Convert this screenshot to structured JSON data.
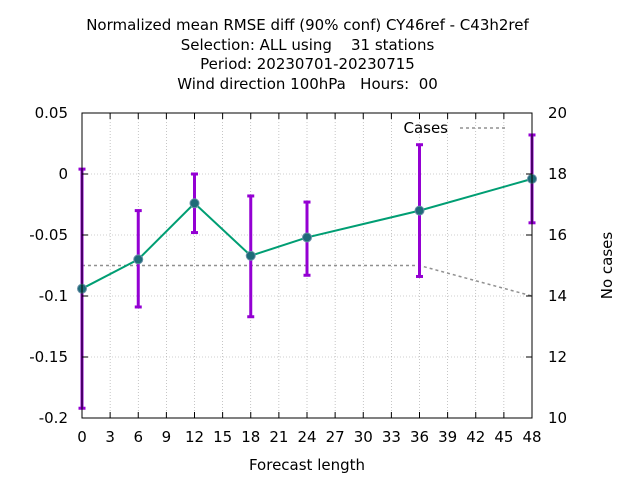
{
  "chart_data": {
    "type": "line",
    "title_lines": [
      "Normalized mean RMSE diff (90% conf) CY46ref - C43h2ref",
      "Selection: ALL using    31 stations",
      "Period: 20230701-20230715",
      "Wind direction 100hPa   Hours:  00"
    ],
    "xlabel": "Forecast length",
    "ylabel": "",
    "y2label": "No cases",
    "xlim": [
      0,
      48
    ],
    "ylim": [
      -0.2,
      0.05
    ],
    "y2lim": [
      10,
      20
    ],
    "x_ticks": [
      0,
      3,
      6,
      9,
      12,
      15,
      18,
      21,
      24,
      27,
      30,
      33,
      36,
      39,
      42,
      45,
      48
    ],
    "y_ticks": [
      "0.05",
      "0",
      "-0.05",
      "-0.1",
      "-0.15",
      "-0.2"
    ],
    "y_tick_values": [
      0.05,
      0,
      -0.05,
      -0.1,
      -0.15,
      -0.2
    ],
    "y2_ticks": [
      "20",
      "18",
      "16",
      "14",
      "12",
      "10"
    ],
    "y2_tick_values": [
      20,
      18,
      16,
      14,
      12,
      10
    ],
    "grid": true,
    "legend": {
      "position": "top-right",
      "entries": [
        "Cases"
      ]
    },
    "series": [
      {
        "kind": "mean_with_errorbars",
        "color": "#009e73",
        "marker_color": "#1e6b78",
        "errorbar_color": "#9400d3",
        "points": [
          {
            "x": 0,
            "y": -0.094,
            "low": -0.192,
            "high": 0.004
          },
          {
            "x": 6,
            "y": -0.07,
            "low": -0.109,
            "high": -0.03
          },
          {
            "x": 12,
            "y": -0.024,
            "low": -0.048,
            "high": 0.0
          },
          {
            "x": 18,
            "y": -0.067,
            "low": -0.117,
            "high": -0.018
          },
          {
            "x": 24,
            "y": -0.052,
            "low": -0.083,
            "high": -0.023
          },
          {
            "x": 36,
            "y": -0.03,
            "low": -0.084,
            "high": 0.024
          },
          {
            "x": 48,
            "y": -0.004,
            "low": -0.04,
            "high": 0.032
          }
        ]
      },
      {
        "name": "Cases",
        "kind": "cases",
        "axis": "y2",
        "color": "#909090",
        "x": [
          0,
          6,
          12,
          18,
          24,
          36,
          48
        ],
        "values": [
          15,
          15,
          15,
          15,
          15,
          15,
          14
        ]
      }
    ]
  }
}
